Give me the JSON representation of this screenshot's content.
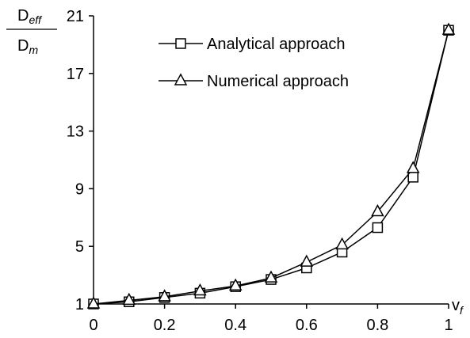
{
  "chart_data": {
    "type": "line",
    "title": "",
    "xlabel": "v",
    "xlabel_sub": "f",
    "ylabel_numerator": "D",
    "ylabel_numerator_sub": "eff",
    "ylabel_denominator": "D",
    "ylabel_denominator_sub": "m",
    "xlim": [
      0,
      1
    ],
    "ylim": [
      1,
      21
    ],
    "x_ticks": [
      "0",
      "0.2",
      "0.4",
      "0.6",
      "0.8",
      "1"
    ],
    "y_ticks": [
      "1",
      "5",
      "9",
      "13",
      "17",
      "21"
    ],
    "grid": false,
    "legend_position": "top-center",
    "x": [
      0,
      0.1,
      0.2,
      0.3,
      0.4,
      0.5,
      0.6,
      0.7,
      0.8,
      0.9,
      1.0
    ],
    "series": [
      {
        "name": "Analytical approach",
        "marker": "square",
        "values": [
          1.0,
          1.15,
          1.45,
          1.75,
          2.2,
          2.7,
          3.5,
          4.6,
          6.3,
          9.8,
          20.0
        ]
      },
      {
        "name": "Numerical approach",
        "marker": "triangle",
        "values": [
          1.0,
          1.25,
          1.5,
          1.9,
          2.25,
          2.8,
          3.9,
          5.1,
          7.4,
          10.4,
          20.0
        ]
      }
    ]
  }
}
